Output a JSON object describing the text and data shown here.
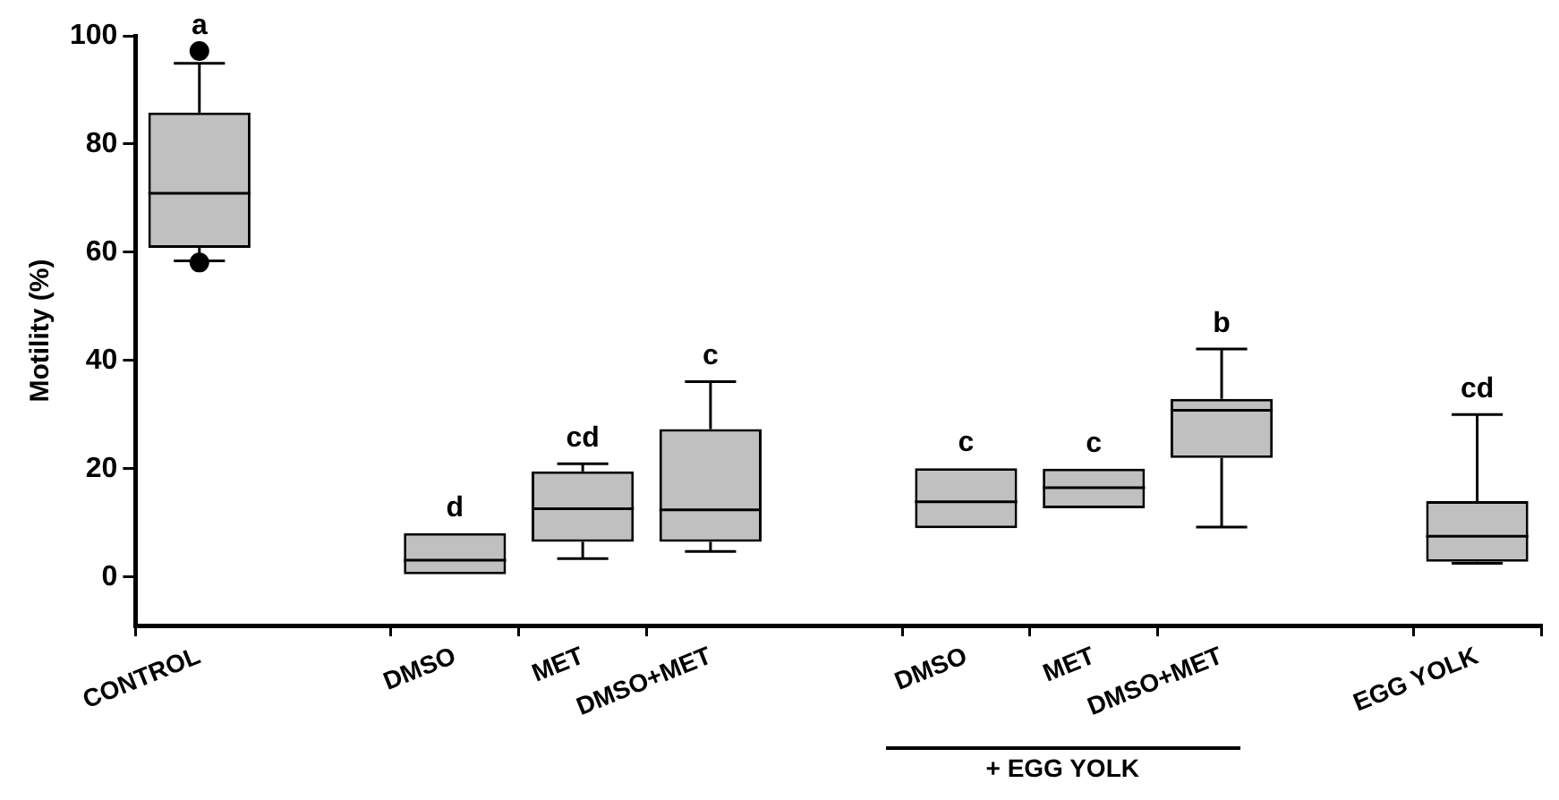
{
  "chart_data": {
    "type": "box",
    "ylabel": "Motility (%)",
    "categories": [
      "CONTROL",
      null,
      "DMSO",
      "MET",
      "DMSO+MET",
      null,
      "DMSO",
      "MET",
      "DMSO+MET",
      null,
      "EGG YOLK"
    ],
    "boxes": [
      {
        "low": 58.4,
        "q1": 60.8,
        "median": 70.9,
        "q3": 85.8,
        "high": 94.9,
        "outliers": [
          97.2,
          58.1
        ]
      },
      null,
      {
        "low": 0.5,
        "q1": 0.5,
        "median": 3.1,
        "q3": 8.1,
        "high": 8.1
      },
      {
        "low": 3.4,
        "q1": 6.5,
        "median": 12.6,
        "q3": 19.5,
        "high": 20.9
      },
      {
        "low": 4.7,
        "q1": 6.5,
        "median": 12.4,
        "q3": 27.3,
        "high": 36.1
      },
      null,
      {
        "low": 9.0,
        "q1": 9.0,
        "median": 13.9,
        "q3": 20.1,
        "high": 20.1
      },
      {
        "low": 12.7,
        "q1": 12.7,
        "median": 16.5,
        "q3": 20.0,
        "high": 20.0
      },
      {
        "low": 9.2,
        "q1": 22.0,
        "median": 30.8,
        "q3": 32.9,
        "high": 42.1
      },
      null,
      {
        "low": 2.5,
        "q1": 2.8,
        "median": 7.5,
        "q3": 14.0,
        "high": 30.0
      }
    ],
    "color": "#c0c0c0",
    "ylim": [
      -9,
      100
    ],
    "yticks": [
      0,
      20,
      40,
      60,
      80,
      100
    ],
    "grid": false,
    "legend": false,
    "annotations": [
      "a",
      "d",
      "cd",
      "c",
      "c",
      "c",
      "b",
      "cd",
      "+ EGG YOLK"
    ]
  }
}
